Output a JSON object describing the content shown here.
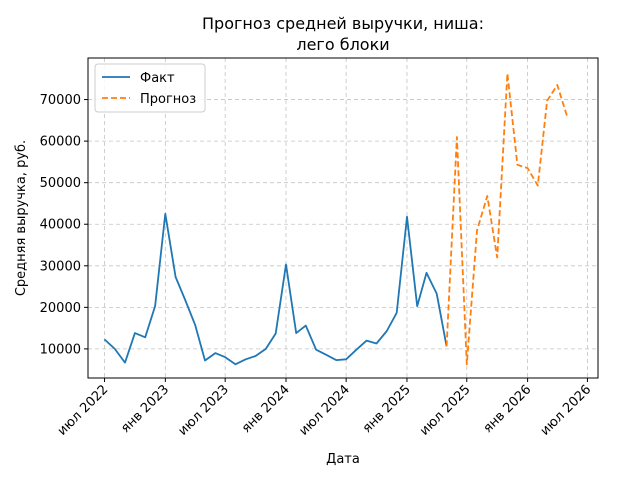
{
  "chart_data": {
    "type": "line",
    "title": [
      "Прогноз средней выручки, ниша:",
      "лего блоки"
    ],
    "xlabel": "Дата",
    "ylabel": "Средняя выручка, руб.",
    "xlim": [
      "2022-05-12",
      "2026-08-02"
    ],
    "ylim": [
      3000,
      80000
    ],
    "grid": true,
    "legend_position": "top-left",
    "x_ticks": [
      {
        "date": "2022-07-01",
        "label": "июл 2022"
      },
      {
        "date": "2023-01-01",
        "label": "янв 2023"
      },
      {
        "date": "2023-07-01",
        "label": "июл 2023"
      },
      {
        "date": "2024-01-01",
        "label": "янв 2024"
      },
      {
        "date": "2024-07-01",
        "label": "июл 2024"
      },
      {
        "date": "2025-01-01",
        "label": "янв 2025"
      },
      {
        "date": "2025-07-01",
        "label": "июл 2025"
      },
      {
        "date": "2026-01-01",
        "label": "янв 2026"
      },
      {
        "date": "2026-07-01",
        "label": "июл 2026"
      }
    ],
    "y_ticks": [
      10000,
      20000,
      30000,
      40000,
      50000,
      60000,
      70000
    ],
    "series": [
      {
        "name": "Факт",
        "color": "#1f77b4",
        "style": "solid",
        "x": [
          "2022-07-01",
          "2022-08-01",
          "2022-09-01",
          "2022-10-01",
          "2022-11-01",
          "2022-12-01",
          "2023-01-01",
          "2023-02-01",
          "2023-03-01",
          "2023-04-01",
          "2023-05-01",
          "2023-06-01",
          "2023-07-01",
          "2023-08-01",
          "2023-09-01",
          "2023-10-01",
          "2023-11-01",
          "2023-12-01",
          "2024-01-01",
          "2024-02-01",
          "2024-03-01",
          "2024-04-01",
          "2024-05-01",
          "2024-06-01",
          "2024-07-01",
          "2024-08-01",
          "2024-09-01",
          "2024-10-01",
          "2024-11-01",
          "2024-12-01",
          "2025-01-01",
          "2025-02-01",
          "2025-03-01",
          "2025-04-01",
          "2025-05-01"
        ],
        "values": [
          12300,
          10000,
          6700,
          13800,
          12800,
          20300,
          42500,
          27300,
          22000,
          15800,
          7200,
          9000,
          8000,
          6300,
          7500,
          8300,
          10000,
          13700,
          30300,
          13800,
          15600,
          9800,
          8600,
          7300,
          7500,
          9800,
          12000,
          11300,
          14300,
          18700,
          41800,
          20300,
          28300,
          23300,
          10600
        ]
      },
      {
        "name": "Прогноз",
        "color": "#ff7f0e",
        "style": "dashed",
        "x": [
          "2025-05-01",
          "2025-06-01",
          "2025-07-01",
          "2025-08-01",
          "2025-09-01",
          "2025-10-01",
          "2025-11-01",
          "2025-12-01",
          "2026-01-01",
          "2026-02-01",
          "2026-03-01",
          "2026-04-01",
          "2026-05-01",
          "2026-06-01"
        ],
        "values": [
          10600,
          61000,
          6300,
          38500,
          46800,
          32000,
          76300,
          54300,
          53500,
          49300,
          69700,
          73500,
          65800,
          null
        ]
      }
    ]
  }
}
